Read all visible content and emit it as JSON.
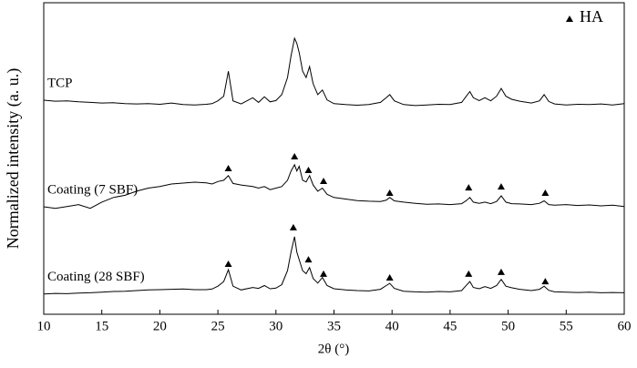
{
  "chart_data": {
    "type": "line",
    "xlabel": "2θ (°)",
    "ylabel": "Normalized intensity (a. u.)",
    "xlim": [
      10,
      60
    ],
    "ylim": [
      0,
      100
    ],
    "xticks": [
      10,
      15,
      20,
      25,
      30,
      35,
      40,
      45,
      50,
      55,
      60
    ],
    "x": [
      10,
      11,
      12,
      13,
      14,
      15,
      16,
      17,
      18,
      19,
      20,
      21,
      22,
      23,
      24,
      24.5,
      25,
      25.5,
      25.9,
      26.3,
      27,
      28,
      28.5,
      29,
      29.5,
      30,
      30.5,
      31,
      31.3,
      31.6,
      31.8,
      32,
      32.3,
      32.6,
      32.9,
      33.2,
      33.6,
      34,
      34.4,
      35,
      36,
      37,
      38,
      39,
      39.5,
      39.8,
      40.2,
      41,
      42,
      43,
      44,
      45,
      46,
      46.4,
      46.7,
      47,
      47.5,
      48,
      48.5,
      49,
      49.4,
      49.8,
      50.3,
      51,
      52,
      52.7,
      53.1,
      53.5,
      54,
      55,
      56,
      57,
      58,
      59,
      60
    ],
    "series": [
      {
        "name": "TCP",
        "color": "#000000",
        "values": [
          68.7,
          68.4,
          68.5,
          68.2,
          68.0,
          67.8,
          67.9,
          67.6,
          67.5,
          67.6,
          67.4,
          67.8,
          67.3,
          67.2,
          67.4,
          67.6,
          68.5,
          70,
          78,
          68.5,
          67.5,
          69.5,
          68,
          69.8,
          68.2,
          68.6,
          70.5,
          76,
          83,
          88.6,
          87,
          84,
          78,
          76,
          79.5,
          74,
          70.5,
          72,
          68.8,
          67.6,
          67.3,
          67.1,
          67.3,
          68,
          69.5,
          70.5,
          68.5,
          67.3,
          67.0,
          67.2,
          67.4,
          67.3,
          68,
          70,
          71.5,
          69.5,
          68.6,
          69.5,
          68.5,
          70,
          72.5,
          70,
          69,
          68.4,
          67.8,
          68.5,
          70.5,
          68.3,
          67.5,
          67.2,
          67.4,
          67.3,
          67.5,
          67.2,
          67.6
        ]
      },
      {
        "name": "Coating (7 SBF)",
        "color": "#000000",
        "values": [
          34.5,
          34,
          34.6,
          35.2,
          34,
          36,
          37.5,
          38.2,
          39.5,
          40.5,
          41,
          41.8,
          42.1,
          42.4,
          42.2,
          41.8,
          42.6,
          43,
          44.5,
          42,
          41.5,
          41,
          40.5,
          41,
          40,
          40.5,
          41,
          43,
          46,
          48,
          46,
          47.5,
          43,
          42.5,
          44.5,
          41.5,
          39.5,
          40.5,
          38.5,
          37.5,
          37,
          36.5,
          36.3,
          36.2,
          36.6,
          37.5,
          36.4,
          36,
          35.6,
          35.3,
          35.4,
          35.2,
          35.5,
          36.5,
          37.5,
          36,
          35.6,
          36,
          35.5,
          36.2,
          38,
          36,
          35.5,
          35.4,
          35.2,
          35.6,
          36.4,
          35.2,
          35,
          35.2,
          34.9,
          35.1,
          34.8,
          35,
          34.6
        ]
      },
      {
        "name": "Coating (28 SBF)",
        "color": "#000000",
        "values": [
          6.5,
          6.7,
          6.6,
          6.8,
          6.9,
          7.1,
          7.3,
          7.4,
          7.6,
          7.8,
          7.9,
          8.0,
          8.1,
          7.9,
          7.9,
          8.1,
          9,
          10.5,
          14.3,
          9,
          7.8,
          8.6,
          8.3,
          9.2,
          8.2,
          8.4,
          9.5,
          14,
          20,
          24.9,
          20,
          17.5,
          14,
          13,
          15,
          11.5,
          10,
          11.8,
          9.2,
          8.2,
          7.8,
          7.6,
          7.5,
          8,
          9.2,
          9.9,
          8.3,
          7.4,
          7.2,
          7.1,
          7.3,
          7.2,
          7.6,
          9.3,
          10.5,
          8.6,
          8.2,
          8.9,
          8.3,
          9.2,
          11.2,
          9,
          8.5,
          8,
          7.6,
          8,
          9,
          7.7,
          7.2,
          7.1,
          7,
          7.1,
          6.9,
          7,
          6.9
        ]
      }
    ],
    "markers": {
      "name": "HA",
      "color": "#000000",
      "legend": "upper right",
      "sets": [
        {
          "x": [
            25.9,
            31.6,
            32.8,
            34.1,
            39.8,
            46.6,
            49.4,
            53.2
          ],
          "y": [
            46.8,
            50.6,
            46.2,
            42.7,
            38.9,
            40.6,
            40.9,
            38.9
          ]
        },
        {
          "x": [
            25.9,
            31.5,
            32.8,
            34.1,
            39.8,
            46.6,
            49.4,
            53.2
          ],
          "y": [
            16.1,
            27.8,
            17.5,
            12.9,
            11.7,
            12.9,
            13.5,
            10.5
          ]
        }
      ]
    }
  }
}
